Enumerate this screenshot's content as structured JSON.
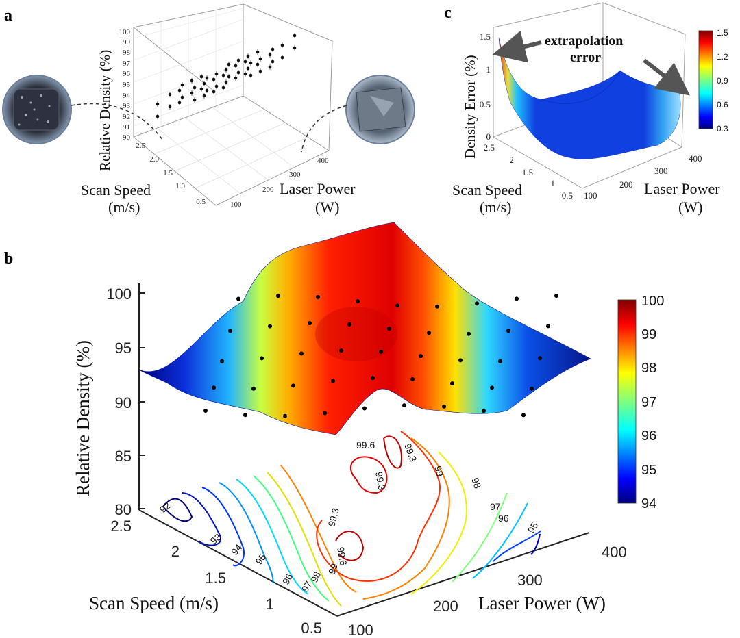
{
  "panel_labels": {
    "a": "a",
    "b": "b",
    "c": "c"
  },
  "photos": {
    "left": "porous-cube-photo",
    "right": "dense-cube-photo"
  },
  "chart_data": [
    {
      "id": "a",
      "type": "scatter",
      "zlabel": "Relative Density (%)",
      "xlabel": "Scan Speed\n(m/s)",
      "ylabel": "Laser Power\n(W)",
      "xlabel_lines": [
        "Scan Speed",
        "(m/s)"
      ],
      "ylabel_lines": [
        "Laser Power",
        "(W)"
      ],
      "z_ticks": [
        "90",
        "91",
        "92",
        "93",
        "94",
        "95",
        "96",
        "97",
        "98",
        "99",
        "100"
      ],
      "speed_ticks": [
        "0.5",
        "1.0",
        "1.5",
        "2.0",
        "2.5"
      ],
      "power_ticks": [
        "100",
        "200",
        "300",
        "400"
      ],
      "xlim": [
        0.5,
        2.5
      ],
      "ylim": [
        100,
        400
      ],
      "zlim": [
        90,
        100
      ],
      "grid": true,
      "points": "experimental measurements with error bars (relative density vs scan speed and laser power)"
    },
    {
      "id": "b",
      "type": "surface",
      "zlabel": "Relative Density (%)",
      "xlabel": "Scan Speed (m/s)",
      "ylabel": "Laser Power (W)",
      "z_ticks": [
        "80",
        "85",
        "90",
        "95",
        "100"
      ],
      "speed_ticks": [
        "0.5",
        "1",
        "1.5",
        "2",
        "2.5"
      ],
      "power_ticks": [
        "100",
        "200",
        "300",
        "400"
      ],
      "zlim": [
        80,
        100
      ],
      "colorbar": {
        "min": 94,
        "max": 100,
        "ticks": [
          "94",
          "95",
          "96",
          "97",
          "98",
          "99",
          "100"
        ]
      },
      "contour_labels": [
        "92",
        "93",
        "94",
        "95",
        "96",
        "97",
        "98",
        "99",
        "99.3",
        "99.6",
        "99.3",
        "99",
        "98",
        "97",
        "96",
        "95",
        "99.3",
        "99.6"
      ],
      "surface_grid": {
        "speed": [
          0.5,
          1.0,
          1.5,
          2.0,
          2.5
        ],
        "power": [
          100,
          175,
          250,
          325,
          400
        ],
        "density": [
          [
            96.5,
            99.0,
            99.5,
            98.5,
            95.5
          ],
          [
            95.5,
            98.8,
            99.6,
            98.8,
            96.0
          ],
          [
            94.5,
            98.0,
            99.6,
            99.0,
            96.5
          ],
          [
            93.0,
            97.0,
            99.3,
            98.5,
            96.0
          ],
          [
            92.0,
            96.0,
            99.0,
            98.0,
            95.0
          ]
        ]
      }
    },
    {
      "id": "c",
      "type": "surface",
      "zlabel": "Density Error (%)",
      "xlabel_lines": [
        "Scan Speed",
        "(m/s)"
      ],
      "ylabel_lines": [
        "Laser Power",
        "(W)"
      ],
      "z_ticks": [
        "0",
        "0.5",
        "1",
        "1.5"
      ],
      "speed_ticks": [
        "0.5",
        "1",
        "1.5",
        "2",
        "2.5"
      ],
      "power_ticks": [
        "100",
        "200",
        "300",
        "400"
      ],
      "zlim": [
        0,
        1.5
      ],
      "colorbar": {
        "min": 0.3,
        "max": 1.5,
        "ticks": [
          "0.3",
          "0.6",
          "0.9",
          "1.2",
          "1.5"
        ]
      },
      "annotation_lines": [
        "extrapolation",
        "error"
      ]
    }
  ]
}
